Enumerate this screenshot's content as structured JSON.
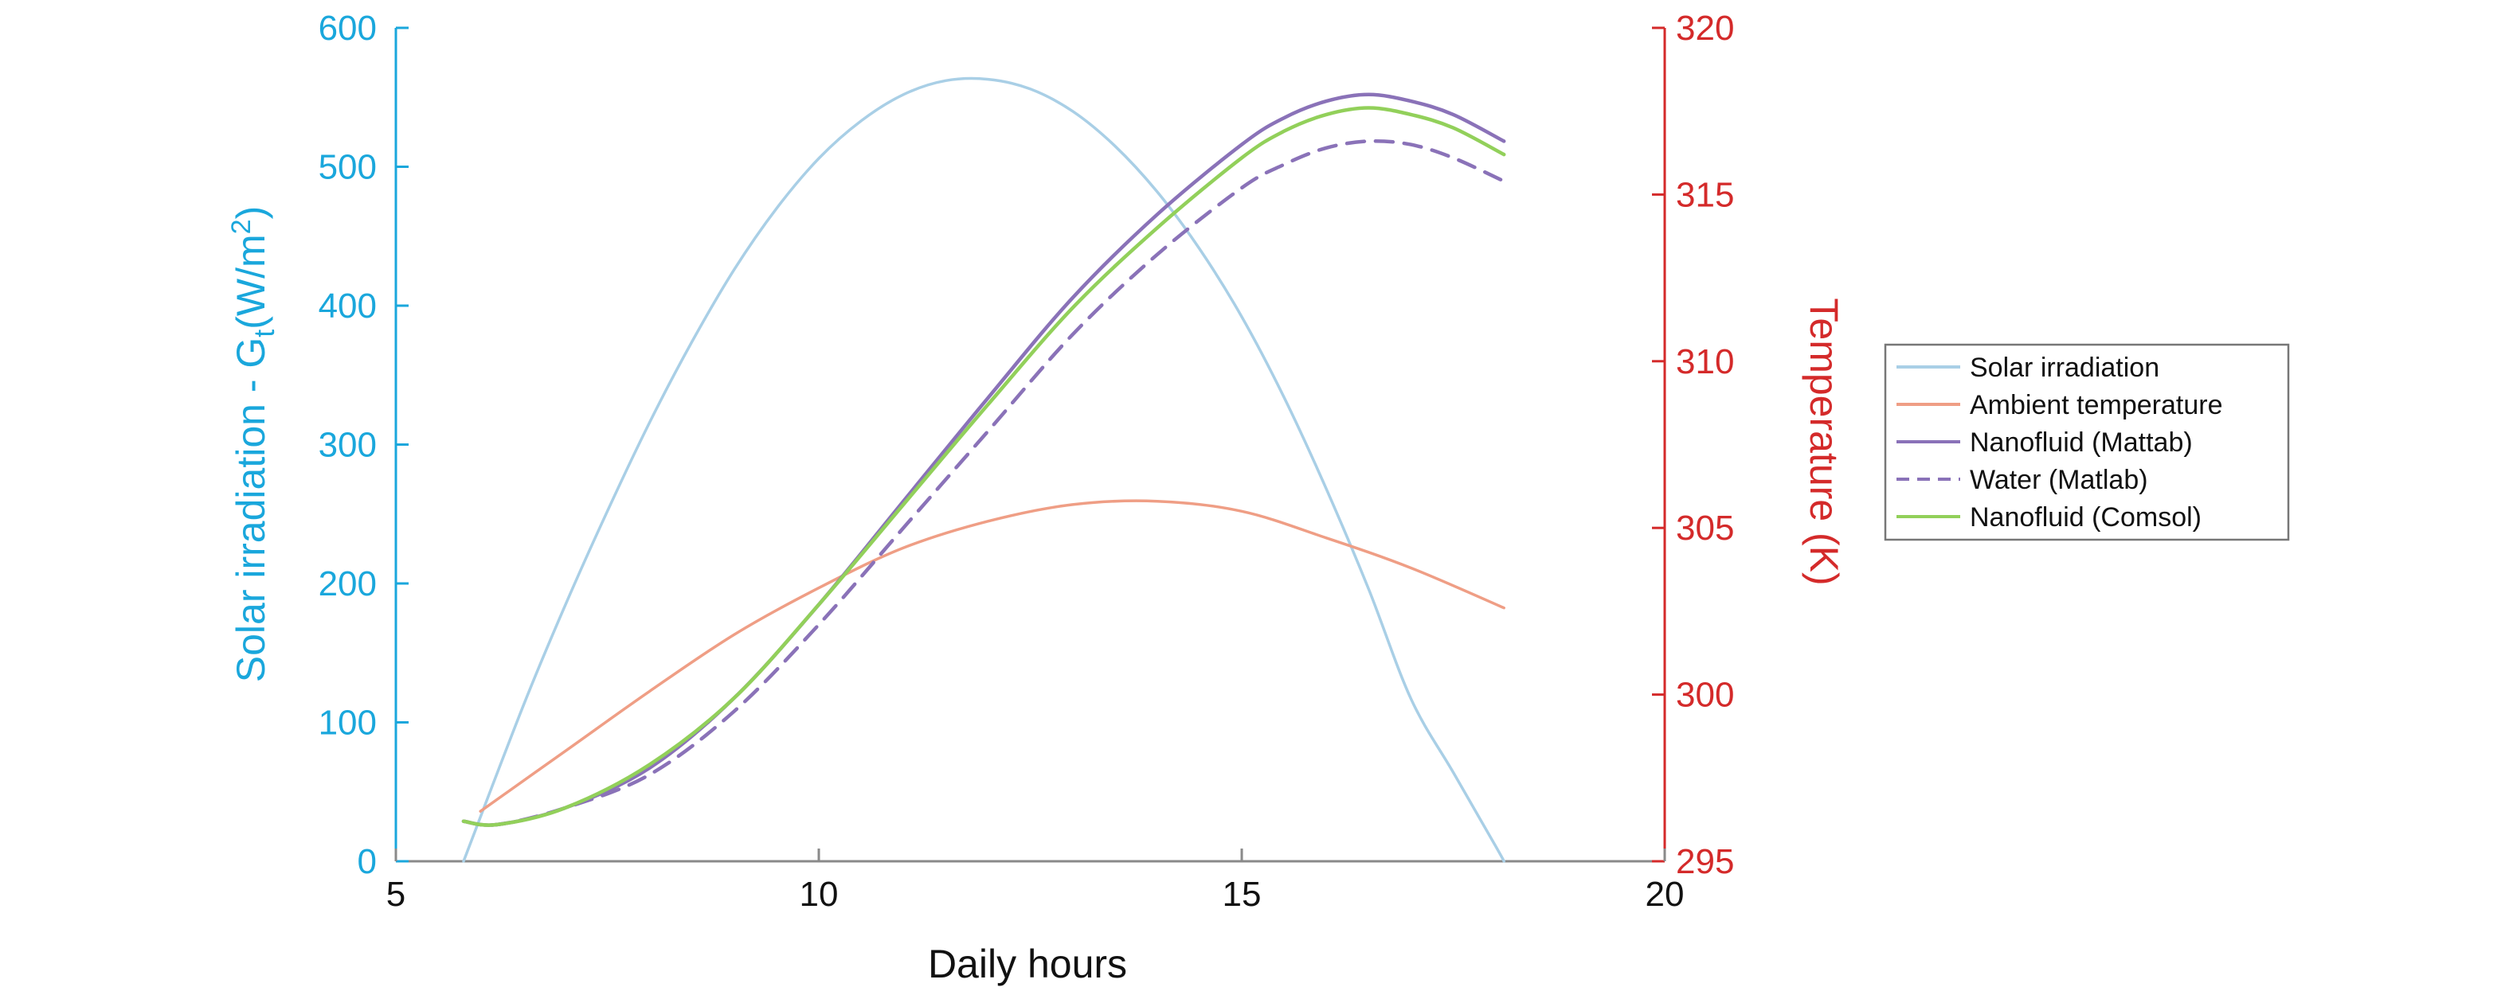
{
  "chart_data": {
    "type": "line",
    "xlabel": "Daily hours",
    "ylabel_left": "Solar irradiation - G",
    "ylabel_left_sub": "t",
    "ylabel_left_unit_open": "(W/m",
    "ylabel_left_unit_sup": "2",
    "ylabel_left_unit_close": ")",
    "ylabel_right": "Temperature (K)",
    "xlim": [
      5,
      20
    ],
    "xticks": [
      "5",
      "10",
      "15",
      "20"
    ],
    "ylim_left": [
      0,
      600
    ],
    "yticks_left": [
      "0",
      "100",
      "200",
      "300",
      "400",
      "500",
      "600"
    ],
    "ylim_right": [
      295,
      320
    ],
    "yticks_right": [
      "295",
      "300",
      "305",
      "310",
      "315",
      "320"
    ],
    "grid": false,
    "legend_position": "right",
    "colors": {
      "left_axis": "#1aa7dc",
      "right_axis": "#d42a2a",
      "solar": "#a9cfe6",
      "ambient": "#ef9e85",
      "nanofluid_matlab": "#8a72b8",
      "water_matlab": "#8a72b8",
      "nanofluid_comsol": "#92d05a"
    },
    "series": [
      {
        "name": "Solar irradiation",
        "axis": "left",
        "key": "solar",
        "dash": false,
        "x": [
          5.8,
          6.5,
          7,
          7.5,
          8,
          8.5,
          9,
          9.5,
          10,
          10.5,
          11,
          11.5,
          12,
          12.5,
          13,
          13.5,
          14,
          14.5,
          15,
          15.5,
          16,
          16.5,
          17,
          17.5,
          18,
          18.1
        ],
        "y": [
          0,
          111,
          184,
          252,
          316,
          374,
          426,
          470,
          506,
          533,
          552,
          562,
          563,
          556,
          540,
          515,
          482,
          441,
          392,
          334,
          268,
          196,
          117,
          64,
          11,
          0
        ]
      },
      {
        "name": "Ambient temperature",
        "axis": "right",
        "key": "ambient",
        "dash": false,
        "x": [
          6,
          7,
          8,
          9,
          10,
          11,
          12,
          13,
          14,
          15,
          16,
          17,
          18.1
        ],
        "y": [
          296.5,
          298.3,
          300.1,
          301.8,
          303.2,
          304.4,
          305.2,
          305.7,
          305.8,
          305.5,
          304.7,
          303.8,
          302.6
        ]
      },
      {
        "name": "Nanofluid (Mattab)",
        "axis": "right",
        "key": "nanofluid_matlab",
        "dash": false,
        "x": [
          5.8,
          6.2,
          7,
          8,
          9,
          10,
          11,
          12,
          13,
          14,
          15,
          15.5,
          16,
          16.5,
          17,
          17.5,
          18.1
        ],
        "y": [
          296.2,
          296.1,
          296.6,
          297.8,
          299.9,
          302.7,
          305.8,
          308.9,
          311.9,
          314.4,
          316.5,
          317.3,
          317.8,
          318.0,
          317.8,
          317.4,
          316.6
        ]
      },
      {
        "name": "Water (Matlab)",
        "axis": "right",
        "key": "water_matlab",
        "dash": true,
        "x": [
          5.8,
          6.2,
          7,
          8,
          9,
          10,
          11,
          12,
          13,
          14,
          15,
          15.5,
          16,
          16.5,
          17,
          17.5,
          18.1
        ],
        "y": [
          296.2,
          296.1,
          296.6,
          297.6,
          299.5,
          302.1,
          305.0,
          307.9,
          310.8,
          313.2,
          315.2,
          315.9,
          316.4,
          316.6,
          316.5,
          316.1,
          315.4
        ]
      },
      {
        "name": "Nanofluid (Comsol)",
        "axis": "right",
        "key": "nanofluid_comsol",
        "dash": false,
        "x": [
          5.8,
          6.2,
          7,
          8,
          9,
          10,
          11,
          12,
          13,
          14,
          15,
          15.5,
          16,
          16.5,
          17,
          17.5,
          18.1
        ],
        "y": [
          296.2,
          296.1,
          296.6,
          297.9,
          299.9,
          302.7,
          305.7,
          308.7,
          311.6,
          314.0,
          316.1,
          316.9,
          317.4,
          317.6,
          317.4,
          317.0,
          316.2
        ]
      }
    ]
  }
}
